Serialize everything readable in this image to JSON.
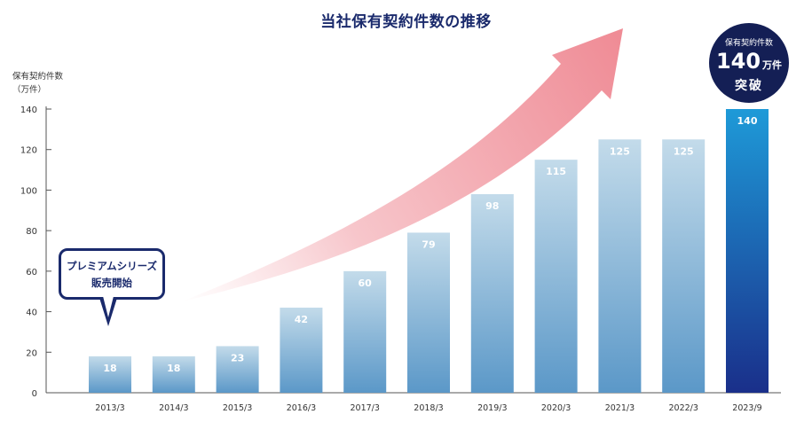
{
  "title": "当社保有契約件数の推移",
  "ylabel_line1": "保有契約件数",
  "ylabel_line2": "（万件）",
  "callout_line1": "プレミアムシリーズ",
  "callout_line2": "販売開始",
  "badge": {
    "line1": "保有契約件数",
    "value": "140",
    "unit": "万件",
    "line3": "突破"
  },
  "colors": {
    "title": "#1a2a6c",
    "bar_light": "#c3dbea",
    "bar_dark": "#5b98c8",
    "highlight_top": "#1e9ad8",
    "highlight_bottom": "#1a2f8a",
    "arrow": "#ef8a94"
  },
  "chart_data": {
    "type": "bar",
    "title": "当社保有契約件数の推移",
    "ylabel": "保有契約件数（万件）",
    "xlabel": "",
    "ylim": [
      0,
      140
    ],
    "yticks": [
      0,
      20,
      40,
      60,
      80,
      100,
      120,
      140
    ],
    "categories": [
      "2013/3",
      "2014/3",
      "2015/3",
      "2016/3",
      "2017/3",
      "2018/3",
      "2019/3",
      "2020/3",
      "2021/3",
      "2022/3",
      "2023/9"
    ],
    "values": [
      18,
      18,
      23,
      42,
      60,
      79,
      98,
      115,
      125,
      125,
      140
    ],
    "data_labels": [
      "18",
      "18",
      "23",
      "42",
      "60",
      "79",
      "98",
      "115",
      "125",
      "125",
      "140"
    ],
    "highlight_category": "2023/9",
    "grid": false
  }
}
